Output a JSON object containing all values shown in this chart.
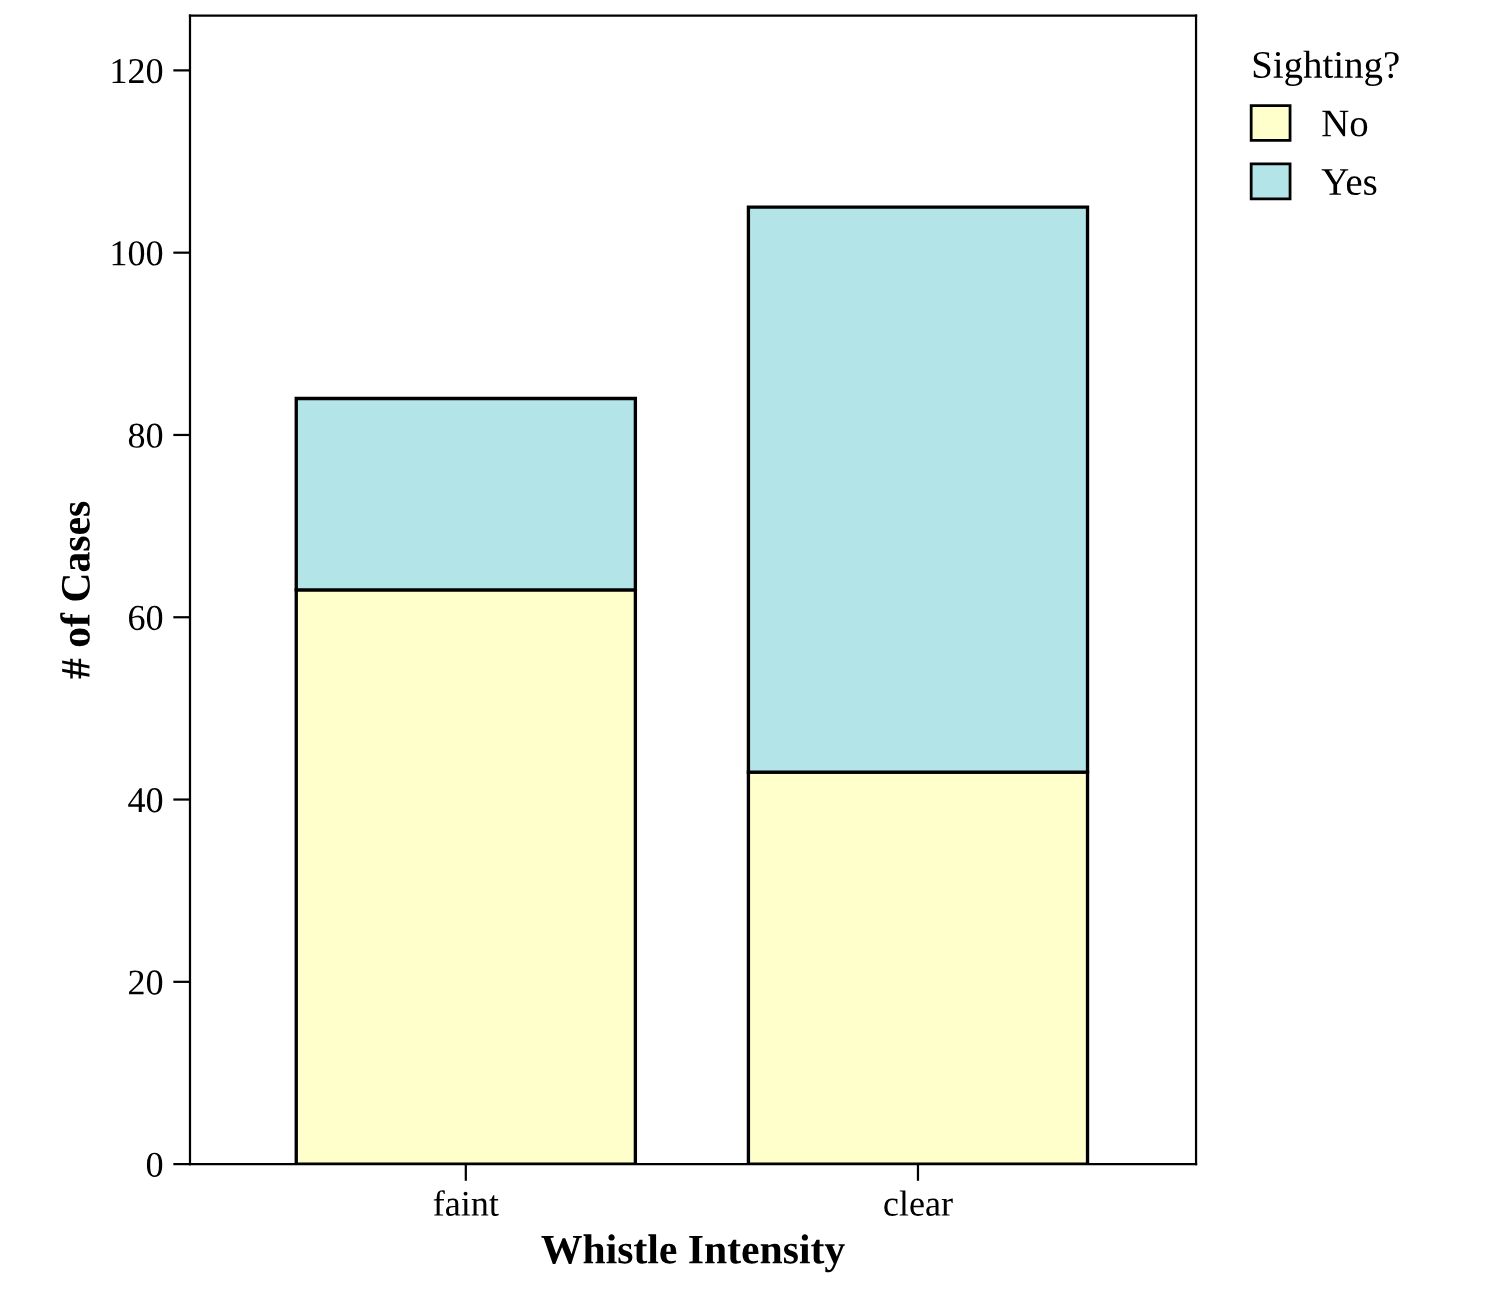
{
  "chart_data": {
    "type": "bar",
    "stacked": true,
    "xlabel": "Whistle Intensity",
    "ylabel": "# of Cases",
    "legend_title": "Sighting?",
    "legend": "top right",
    "grid": false,
    "categories": [
      "faint",
      "clear"
    ],
    "series": [
      {
        "name": "No",
        "color": "#ffffcc",
        "values": [
          63,
          43
        ]
      },
      {
        "name": "Yes",
        "color": "#b3e5e8",
        "values": [
          21,
          62
        ]
      }
    ],
    "ylim": [
      0,
      126
    ],
    "yticks": [
      0,
      20,
      40,
      60,
      80,
      100,
      120
    ]
  }
}
